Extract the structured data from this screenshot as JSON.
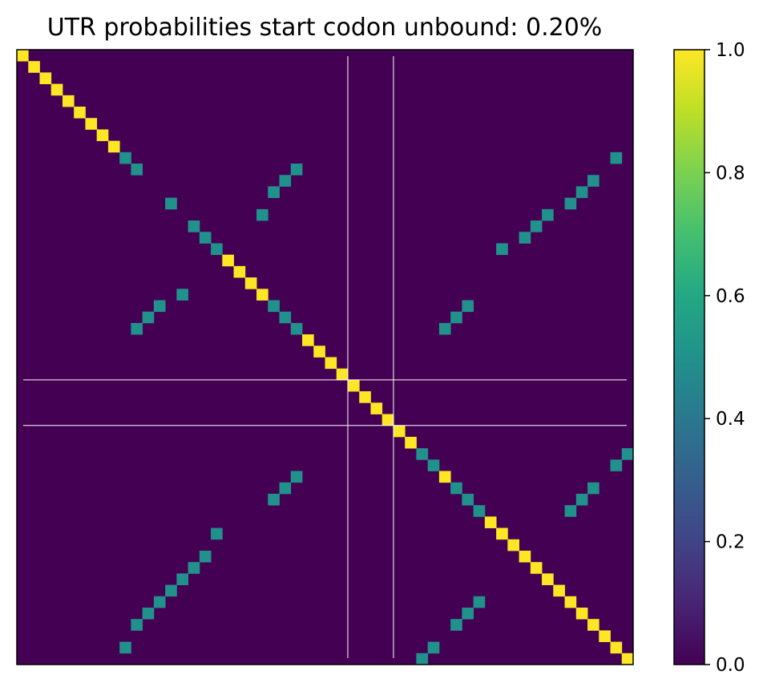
{
  "chart_data": {
    "type": "heatmap",
    "title": "UTR probabilities start codon unbound: 0.20%",
    "xlabel": "",
    "ylabel": "",
    "x_ticks_shown": false,
    "y_ticks_shown": false,
    "grid": false,
    "size": 54,
    "value_range": [
      0.0,
      1.0
    ],
    "background_value": 0.0,
    "colormap": "viridis",
    "colors": {
      "low": "#440154",
      "mid": "#21918c",
      "high": "#fde725",
      "guide_lines": "#ffffff"
    },
    "marker_lines": [
      29,
      33
    ],
    "cells": [
      [
        0,
        0,
        1.0
      ],
      [
        1,
        1,
        1.0
      ],
      [
        2,
        2,
        1.0
      ],
      [
        3,
        3,
        1.0
      ],
      [
        4,
        4,
        1.0
      ],
      [
        5,
        5,
        1.0
      ],
      [
        6,
        6,
        1.0
      ],
      [
        7,
        7,
        1.0
      ],
      [
        8,
        8,
        1.0
      ],
      [
        9,
        9,
        0.5
      ],
      [
        10,
        10,
        0.5
      ],
      [
        10,
        24,
        0.5
      ],
      [
        11,
        23,
        0.5
      ],
      [
        12,
        22,
        0.5
      ],
      [
        14,
        21,
        0.5
      ],
      [
        9,
        52,
        0.5
      ],
      [
        11,
        50,
        0.5
      ],
      [
        12,
        49,
        0.5
      ],
      [
        13,
        48,
        0.5
      ],
      [
        14,
        46,
        0.5
      ],
      [
        15,
        45,
        0.5
      ],
      [
        16,
        44,
        0.5
      ],
      [
        17,
        42,
        0.5
      ],
      [
        13,
        13,
        0.5
      ],
      [
        15,
        15,
        0.5
      ],
      [
        16,
        16,
        0.5
      ],
      [
        17,
        17,
        0.5
      ],
      [
        18,
        18,
        1.0
      ],
      [
        19,
        19,
        1.0
      ],
      [
        20,
        20,
        1.0
      ],
      [
        21,
        21,
        1.0
      ],
      [
        21,
        14,
        0.5
      ],
      [
        22,
        12,
        0.5
      ],
      [
        23,
        11,
        0.5
      ],
      [
        24,
        10,
        0.5
      ],
      [
        22,
        22,
        0.5
      ],
      [
        23,
        23,
        0.5
      ],
      [
        24,
        24,
        0.5
      ],
      [
        22,
        39,
        0.5
      ],
      [
        23,
        38,
        0.5
      ],
      [
        24,
        37,
        0.5
      ],
      [
        25,
        25,
        1.0
      ],
      [
        26,
        26,
        1.0
      ],
      [
        27,
        27,
        1.0
      ],
      [
        28,
        28,
        1.0
      ],
      [
        29,
        29,
        1.0
      ],
      [
        30,
        30,
        1.0
      ],
      [
        31,
        31,
        1.0
      ],
      [
        32,
        32,
        1.0
      ],
      [
        33,
        33,
        1.0
      ],
      [
        34,
        34,
        1.0
      ],
      [
        35,
        35,
        0.5
      ],
      [
        36,
        36,
        0.5
      ],
      [
        37,
        37,
        1.0
      ],
      [
        38,
        38,
        0.5
      ],
      [
        39,
        39,
        0.5
      ],
      [
        40,
        40,
        0.5
      ],
      [
        35,
        53,
        0.5
      ],
      [
        36,
        52,
        0.5
      ],
      [
        37,
        24,
        0.5
      ],
      [
        38,
        23,
        0.5
      ],
      [
        39,
        22,
        0.5
      ],
      [
        38,
        50,
        0.5
      ],
      [
        39,
        49,
        0.5
      ],
      [
        40,
        48,
        0.5
      ],
      [
        41,
        41,
        1.0
      ],
      [
        42,
        42,
        1.0
      ],
      [
        43,
        43,
        1.0
      ],
      [
        44,
        44,
        1.0
      ],
      [
        45,
        45,
        1.0
      ],
      [
        46,
        46,
        1.0
      ],
      [
        47,
        47,
        1.0
      ],
      [
        48,
        48,
        1.0
      ],
      [
        49,
        49,
        1.0
      ],
      [
        50,
        50,
        1.0
      ],
      [
        51,
        51,
        1.0
      ],
      [
        52,
        52,
        1.0
      ],
      [
        53,
        53,
        1.0
      ],
      [
        42,
        17,
        0.5
      ],
      [
        44,
        16,
        0.5
      ],
      [
        45,
        15,
        0.5
      ],
      [
        46,
        14,
        0.5
      ],
      [
        47,
        13,
        0.5
      ],
      [
        48,
        12,
        0.5
      ],
      [
        49,
        11,
        0.5
      ],
      [
        50,
        10,
        0.5
      ],
      [
        52,
        9,
        0.5
      ],
      [
        48,
        40,
        0.5
      ],
      [
        49,
        39,
        0.5
      ],
      [
        50,
        38,
        0.5
      ],
      [
        52,
        36,
        0.5
      ],
      [
        53,
        35,
        0.5
      ]
    ],
    "colorbar": {
      "ticks": [
        "0.0",
        "0.2",
        "0.4",
        "0.6",
        "0.8",
        "1.0"
      ],
      "tick_values": [
        0.0,
        0.2,
        0.4,
        0.6,
        0.8,
        1.0
      ]
    }
  }
}
